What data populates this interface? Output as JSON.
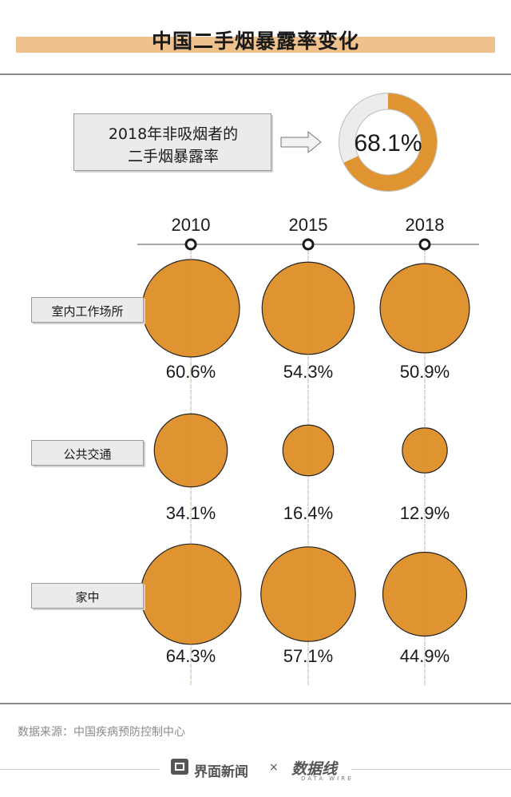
{
  "title": "中国二手烟暴露率变化",
  "headline": {
    "line1": "2018年非吸烟者的",
    "line2": "二手烟暴露率",
    "value": 68.1,
    "value_label": "68.1%"
  },
  "colors": {
    "fill": "#e09431",
    "track": "#ececec",
    "title_band": "#efc18c",
    "stroke": "#222222"
  },
  "chart_data": {
    "type": "bubble",
    "title": "中国二手烟暴露率变化",
    "years": [
      "2010",
      "2015",
      "2018"
    ],
    "categories": [
      {
        "name": "室内工作场所",
        "values": [
          60.6,
          54.3,
          50.9
        ],
        "labels": [
          "60.6%",
          "54.3%",
          "50.9%"
        ]
      },
      {
        "name": "公共交通",
        "values": [
          34.1,
          16.4,
          12.9
        ],
        "labels": [
          "34.1%",
          "16.4%",
          "12.9%"
        ]
      },
      {
        "name": "家中",
        "values": [
          64.3,
          57.1,
          44.9
        ],
        "labels": [
          "64.3%",
          "57.1%",
          "44.9%"
        ]
      }
    ],
    "unit": "%"
  },
  "source": "数据来源：中国疾病预防控制中心",
  "footer": {
    "brand": "界面新闻",
    "times": "×",
    "partner": "数据线",
    "partner_sub": "DATA WIRE"
  }
}
